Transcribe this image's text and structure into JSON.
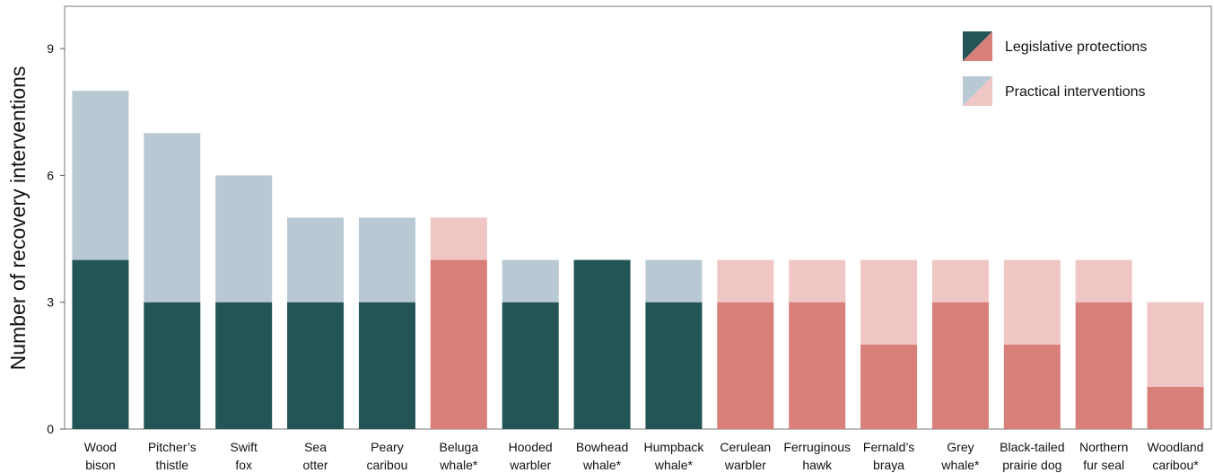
{
  "chart_data": {
    "type": "stacked_bar",
    "y_label": "Number of recovery interventions",
    "categories": [
      "Wood\nbison",
      "Pitcher’s\nthistle",
      "Swift\nfox",
      "Sea\notter",
      "Peary\ncaribou",
      "Beluga\nwhale*",
      "Hooded\nwarbler",
      "Bowhead\nwhale*",
      "Humpback\nwhale*",
      "Cerulean\nwarbler",
      "Ferruginous\nhawk",
      "Fernald’s\nbraya",
      "Grey\nwhale*",
      "Black-tailed\nprairie dog",
      "Northern\nfur seal",
      "Woodland\ncaribou*"
    ],
    "bar_palette": [
      0,
      0,
      0,
      0,
      0,
      1,
      0,
      0,
      0,
      1,
      1,
      1,
      1,
      1,
      1,
      1
    ],
    "series": [
      {
        "name": "Legislative protections",
        "colors": [
          "#235456",
          "#d77f78"
        ],
        "values": [
          4,
          3,
          3,
          3,
          3,
          4,
          3,
          4,
          3,
          3,
          3,
          2,
          3,
          2,
          3,
          1
        ]
      },
      {
        "name": "Practical interventions",
        "colors": [
          "#b8c9d3",
          "#f0c6c5"
        ],
        "values": [
          4,
          4,
          3,
          2,
          2,
          1,
          1,
          0,
          1,
          1,
          1,
          2,
          1,
          2,
          1,
          2
        ]
      }
    ],
    "ylim": [
      0,
      10
    ],
    "yticks": [
      0,
      3,
      6,
      9
    ],
    "legend": "top-right"
  }
}
